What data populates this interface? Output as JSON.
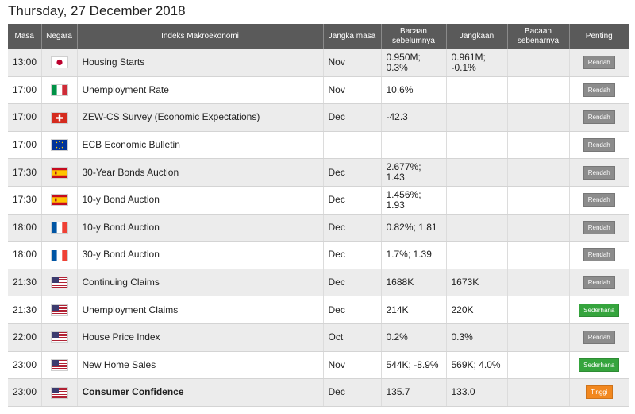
{
  "date_title": "Thursday, 27 December 2018",
  "headers": {
    "time": "Masa",
    "country": "Negara",
    "indicator": "Indeks Makroekonomi",
    "period": "Jangka masa",
    "previous": "Bacaan sebelumnya",
    "forecast": "Jangkaan",
    "actual": "Bacaan sebenarnya",
    "importance": "Penting"
  },
  "colors": {
    "header_bg": "#5a5a5a",
    "row_alt": "#ececec",
    "low": "#8c8c8c",
    "medium": "#35a43d",
    "high": "#f2881f"
  },
  "rows": [
    {
      "time": "13:00",
      "flag": "jp",
      "indicator": "Housing Starts",
      "period": "Nov",
      "previous": "0.950M; 0.3%",
      "forecast": "0.961M; -0.1%",
      "actual": "",
      "importance": "Rendah",
      "level": "low",
      "bold": false
    },
    {
      "time": "17:00",
      "flag": "it",
      "indicator": "Unemployment Rate",
      "period": "Nov",
      "previous": "10.6%",
      "forecast": "",
      "actual": "",
      "importance": "Rendah",
      "level": "low",
      "bold": false
    },
    {
      "time": "17:00",
      "flag": "ch",
      "indicator": "ZEW-CS Survey (Economic Expectations)",
      "period": "Dec",
      "previous": "-42.3",
      "forecast": "",
      "actual": "",
      "importance": "Rendah",
      "level": "low",
      "bold": false
    },
    {
      "time": "17:00",
      "flag": "eu",
      "indicator": "ECB Economic Bulletin",
      "period": "",
      "previous": "",
      "forecast": "",
      "actual": "",
      "importance": "Rendah",
      "level": "low",
      "bold": false
    },
    {
      "time": "17:30",
      "flag": "es",
      "indicator": "30-Year Bonds Auction",
      "period": "Dec",
      "previous": "2.677%; 1.43",
      "forecast": "",
      "actual": "",
      "importance": "Rendah",
      "level": "low",
      "bold": false
    },
    {
      "time": "17:30",
      "flag": "es",
      "indicator": "10-y Bond Auction",
      "period": "Dec",
      "previous": "1.456%; 1.93",
      "forecast": "",
      "actual": "",
      "importance": "Rendah",
      "level": "low",
      "bold": false
    },
    {
      "time": "18:00",
      "flag": "fr",
      "indicator": "10-y Bond Auction",
      "period": "Dec",
      "previous": "0.82%; 1.81",
      "forecast": "",
      "actual": "",
      "importance": "Rendah",
      "level": "low",
      "bold": false
    },
    {
      "time": "18:00",
      "flag": "fr",
      "indicator": "30-y Bond Auction",
      "period": "Dec",
      "previous": "1.7%; 1.39",
      "forecast": "",
      "actual": "",
      "importance": "Rendah",
      "level": "low",
      "bold": false
    },
    {
      "time": "21:30",
      "flag": "us",
      "indicator": "Continuing Claims",
      "period": "Dec",
      "previous": "1688K",
      "forecast": "1673K",
      "actual": "",
      "importance": "Rendah",
      "level": "low",
      "bold": false
    },
    {
      "time": "21:30",
      "flag": "us",
      "indicator": "Unemployment Claims",
      "period": "Dec",
      "previous": "214K",
      "forecast": "220K",
      "actual": "",
      "importance": "Sederhana",
      "level": "med",
      "bold": false
    },
    {
      "time": "22:00",
      "flag": "us",
      "indicator": "House Price Index",
      "period": "Oct",
      "previous": "0.2%",
      "forecast": "0.3%",
      "actual": "",
      "importance": "Rendah",
      "level": "low",
      "bold": false
    },
    {
      "time": "23:00",
      "flag": "us",
      "indicator": "New Home Sales",
      "period": "Nov",
      "previous": "544K; -8.9%",
      "forecast": "569K; 4.0%",
      "actual": "",
      "importance": "Sederhana",
      "level": "med",
      "bold": false
    },
    {
      "time": "23:00",
      "flag": "us",
      "indicator": "Consumer Confidence",
      "period": "Dec",
      "previous": "135.7",
      "forecast": "133.0",
      "actual": "",
      "importance": "Tinggi",
      "level": "high",
      "bold": true
    }
  ]
}
